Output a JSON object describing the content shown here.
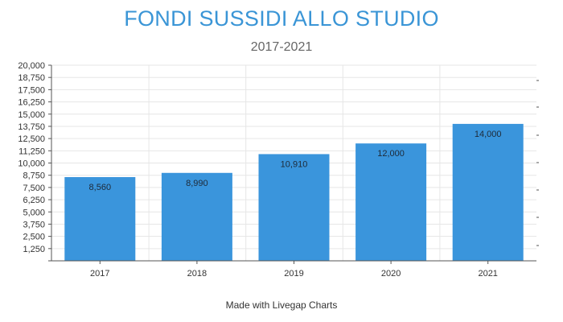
{
  "header": {
    "title": "FONDI SUSSIDI ALLO STUDIO",
    "subtitle": "2017-2021"
  },
  "footer": {
    "credit": "Made with Livegap Charts"
  },
  "colors": {
    "bar": "#3a95dc",
    "title": "#3a95d6",
    "grid": "#e6e6e6",
    "axis": "#555555"
  },
  "chart_data": {
    "type": "bar",
    "title": "FONDI SUSSIDI ALLO STUDIO",
    "subtitle": "2017-2021",
    "xlabel": "",
    "ylabel": "",
    "categories": [
      "2017",
      "2018",
      "2019",
      "2020",
      "2021"
    ],
    "values": [
      8560,
      8990,
      10910,
      12000,
      14000
    ],
    "value_labels": [
      "8,560",
      "8,990",
      "10,910",
      "12,000",
      "14,000"
    ],
    "ylim": [
      0,
      20000
    ],
    "yticks": [
      1250,
      2500,
      3750,
      5000,
      6250,
      7500,
      8750,
      10000,
      11250,
      12500,
      13750,
      15000,
      16250,
      17500,
      18750,
      20000
    ],
    "ytick_labels": [
      "1,250",
      "2,500",
      "3,750",
      "5,000",
      "6,250",
      "7,500",
      "8,750",
      "10,000",
      "11,250",
      "12,500",
      "13,750",
      "15,000",
      "16,250",
      "17,500",
      "18,750",
      "20,000"
    ],
    "grid": true,
    "legend": "none"
  }
}
